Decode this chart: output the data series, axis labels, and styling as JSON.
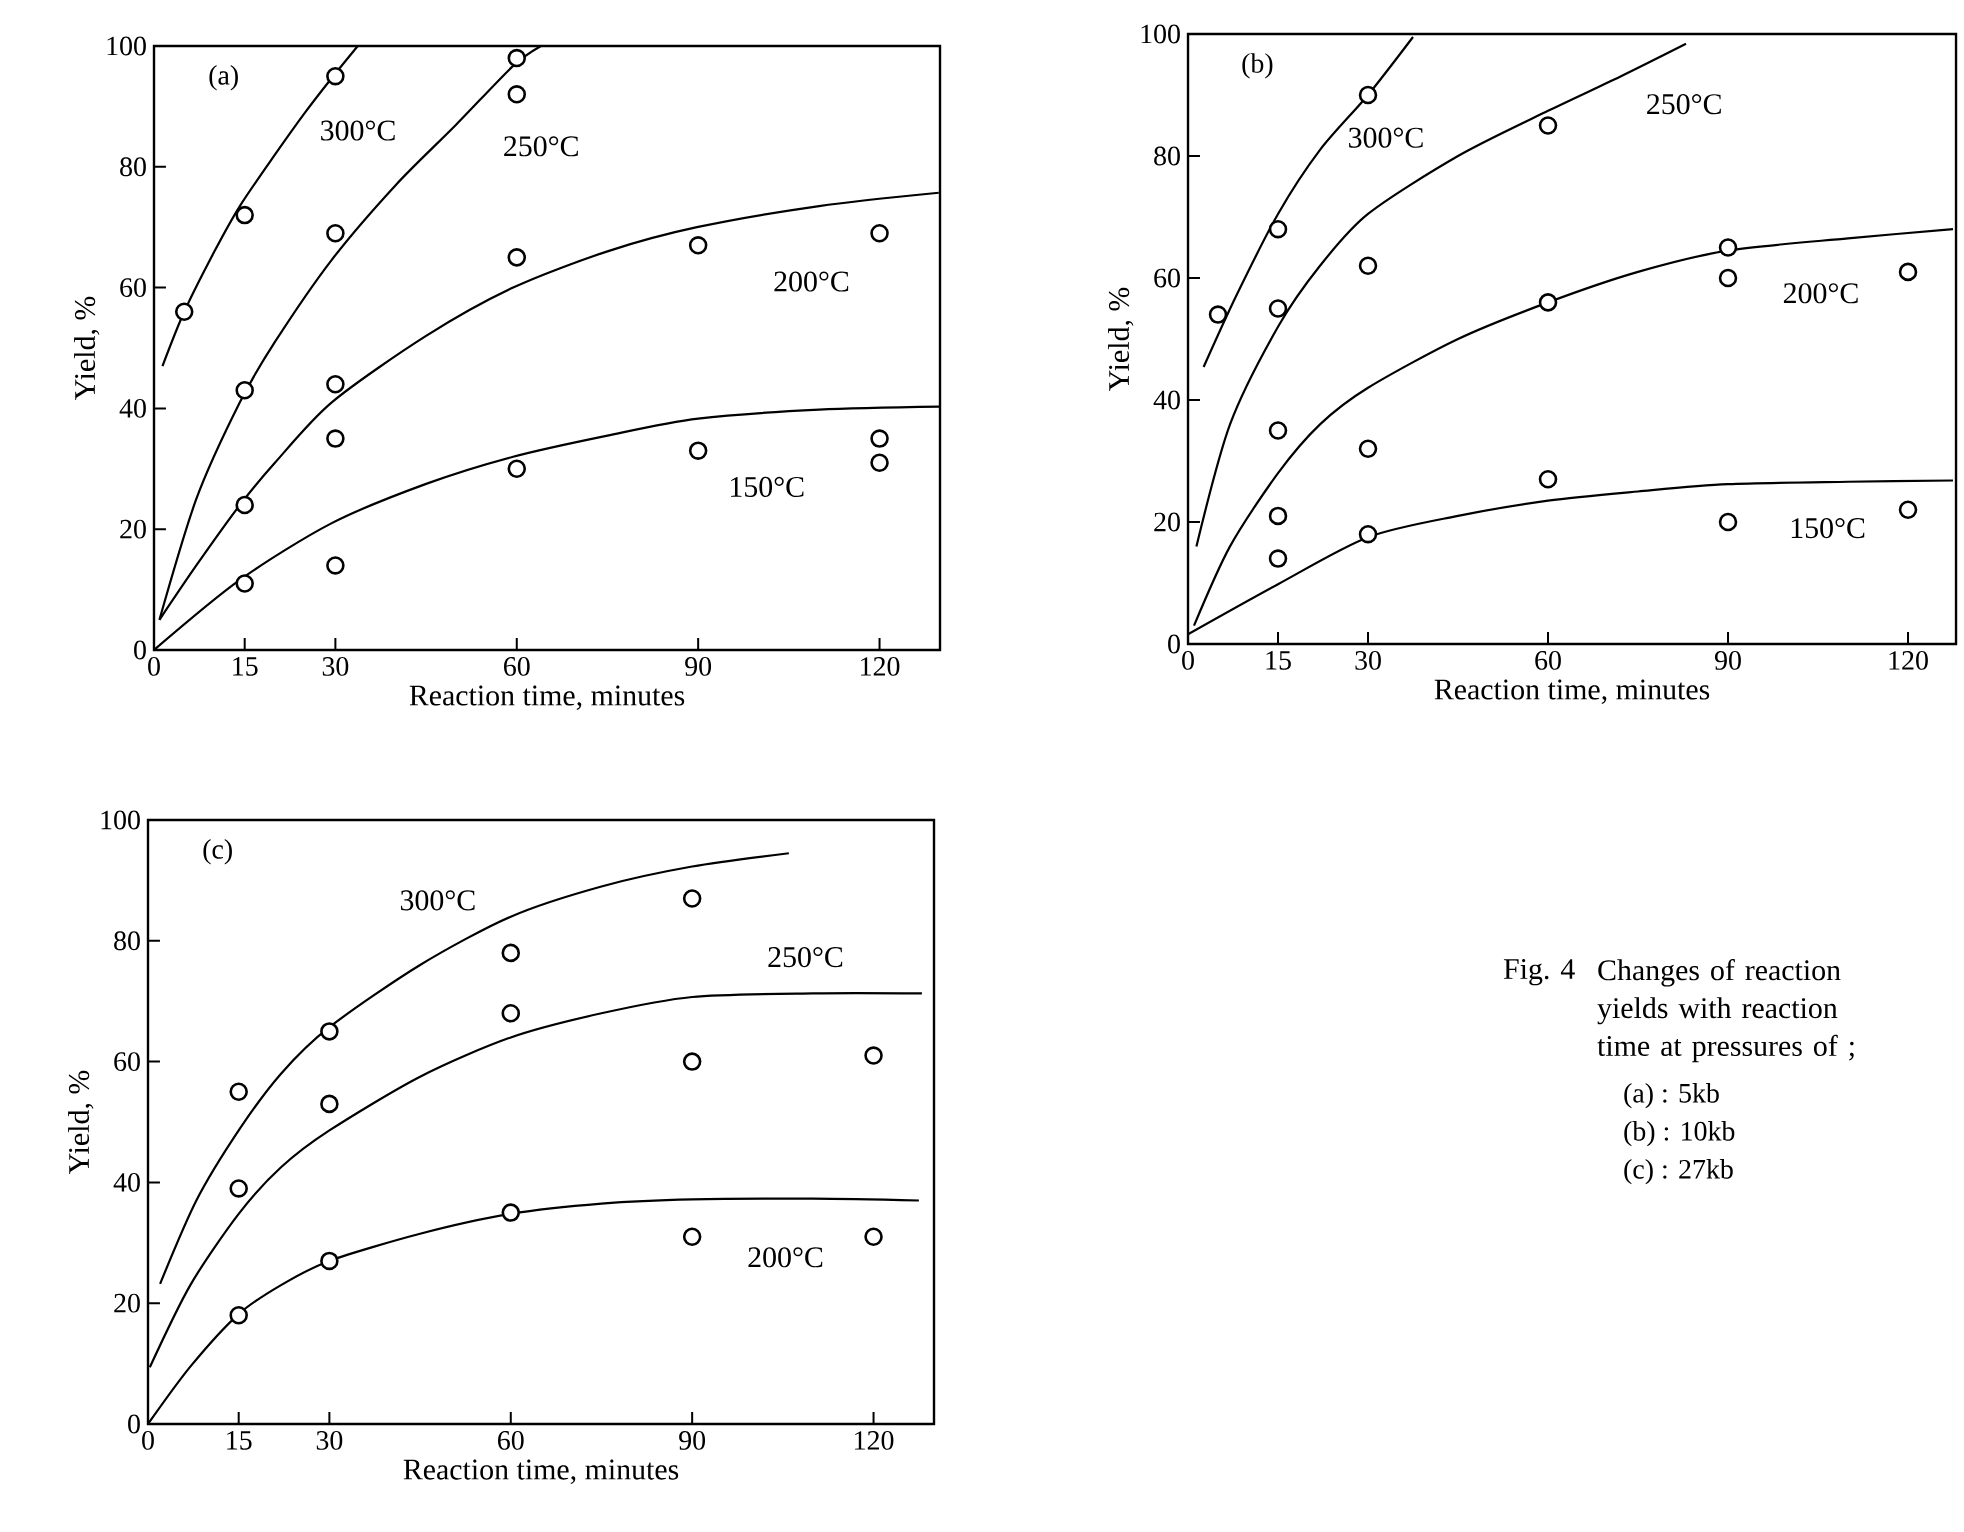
{
  "chart_data": [
    {
      "type": "scatter",
      "xlabel": "Reaction time, minutes",
      "ylabel": "Yield, %",
      "annotations": [
        "(a)"
      ],
      "xlim": [
        0,
        130
      ],
      "ylim": [
        0,
        100
      ],
      "xticks": [
        0,
        15,
        30,
        60,
        90,
        120
      ],
      "yticks": [
        0,
        20,
        40,
        60,
        80,
        100
      ],
      "grid": false,
      "series": [
        {
          "type": "line",
          "marker": "none",
          "name": "300°C",
          "color": "#000000",
          "x": [
            1.4,
            5,
            10,
            14.2,
            20,
            25,
            29.4,
            33.7
          ],
          "values": [
            47,
            56,
            66,
            73.5,
            82,
            89,
            94.7,
            100
          ]
        },
        {
          "marker": "circle",
          "color": "#000000",
          "x": [
            5,
            15,
            30
          ],
          "values": [
            56,
            72,
            95
          ]
        },
        {
          "type": "line",
          "marker": "none",
          "name": "250°C",
          "color": "#000000",
          "x": [
            0.9,
            7,
            14.2,
            20,
            29.4,
            40,
            50,
            59.4,
            64
          ],
          "values": [
            5,
            25,
            41,
            51,
            64.6,
            77,
            87,
            96.7,
            100
          ]
        },
        {
          "marker": "circle",
          "color": "#000000",
          "x": [
            15,
            30,
            60,
            60
          ],
          "values": [
            43,
            69,
            98,
            92
          ]
        },
        {
          "type": "line",
          "marker": "none",
          "name": "200°C",
          "color": "#000000",
          "x": [
            0.9,
            7,
            14.2,
            20,
            29.4,
            45,
            59.4,
            75,
            89.8,
            110,
            129.8
          ],
          "values": [
            5,
            14,
            24,
            31,
            41,
            52,
            60,
            66,
            70,
            73.5,
            75.7
          ]
        },
        {
          "marker": "circle",
          "color": "#000000",
          "x": [
            15,
            30,
            30,
            60,
            90,
            120
          ],
          "values": [
            24,
            44,
            35,
            65,
            67,
            69
          ]
        },
        {
          "type": "line",
          "marker": "none",
          "name": "150°C",
          "color": "#000000",
          "x": [
            0,
            14.2,
            29.4,
            45,
            59.4,
            75,
            90,
            110,
            130
          ],
          "values": [
            0,
            11.6,
            21,
            27.5,
            32,
            35.5,
            38.3,
            39.8,
            40.3
          ]
        },
        {
          "marker": "circle",
          "color": "#000000",
          "x": [
            15,
            30,
            60,
            90,
            120,
            120
          ],
          "values": [
            11,
            14,
            30,
            33,
            35,
            31
          ]
        }
      ]
    },
    {
      "type": "scatter",
      "xlabel": "Reaction time, minutes",
      "ylabel": "Yield, %",
      "annotations": [
        "(b)"
      ],
      "xlim": [
        0,
        128
      ],
      "ylim": [
        0,
        100
      ],
      "xticks": [
        0,
        15,
        30,
        60,
        90,
        120
      ],
      "yticks": [
        0,
        20,
        40,
        60,
        80,
        100
      ],
      "grid": false,
      "series": [
        {
          "type": "line",
          "marker": "none",
          "name": "300°C",
          "color": "#000000",
          "x": [
            2.6,
            8,
            15,
            22,
            30,
            37.5
          ],
          "values": [
            45.4,
            57,
            70.5,
            81,
            90,
            99.5
          ]
        },
        {
          "marker": "circle",
          "color": "#000000",
          "x": [
            5,
            15,
            30
          ],
          "values": [
            54,
            68,
            90
          ]
        },
        {
          "type": "line",
          "marker": "none",
          "name": "250°C",
          "color": "#000000",
          "x": [
            1.4,
            7,
            15,
            22,
            30,
            45,
            60,
            72,
            83
          ],
          "values": [
            16,
            36,
            52,
            62,
            70.5,
            80,
            87.4,
            93,
            98.4
          ]
        },
        {
          "marker": "circle",
          "color": "#000000",
          "x": [
            15,
            30,
            60
          ],
          "values": [
            55,
            62,
            85
          ]
        },
        {
          "type": "line",
          "marker": "none",
          "name": "200°C",
          "color": "#000000",
          "x": [
            1,
            7,
            15,
            22,
            30,
            45,
            60,
            75,
            90,
            110,
            127.5
          ],
          "values": [
            3,
            16,
            28,
            36,
            42,
            50,
            56,
            61,
            64.5,
            66.5,
            68
          ]
        },
        {
          "marker": "circle",
          "color": "#000000",
          "x": [
            15,
            15,
            30,
            60,
            90,
            90,
            120
          ],
          "values": [
            35,
            21,
            32,
            56,
            65,
            60,
            61
          ]
        },
        {
          "type": "line",
          "marker": "none",
          "name": "150°C",
          "color": "#000000",
          "x": [
            0,
            15,
            30,
            45,
            60,
            75,
            90,
            110,
            127.5
          ],
          "values": [
            1.6,
            9.8,
            17.5,
            21,
            23.5,
            25,
            26.2,
            26.6,
            26.8
          ]
        },
        {
          "marker": "circle",
          "color": "#000000",
          "x": [
            15,
            30,
            60,
            90,
            120
          ],
          "values": [
            14,
            18,
            27,
            20,
            22
          ]
        }
      ]
    },
    {
      "type": "scatter",
      "xlabel": "Reaction time, minutes",
      "ylabel": "Yield, %",
      "annotations": [
        "(c)"
      ],
      "xlim": [
        0,
        130
      ],
      "ylim": [
        0,
        100
      ],
      "xticks": [
        0,
        15,
        30,
        60,
        90,
        120
      ],
      "yticks": [
        0,
        20,
        40,
        60,
        80,
        100
      ],
      "grid": false,
      "series": [
        {
          "type": "line",
          "marker": "none",
          "name": "300°C",
          "color": "#000000",
          "x": [
            2,
            8,
            15,
            22,
            30,
            45,
            60,
            75,
            90,
            106
          ],
          "values": [
            23.2,
            37,
            48.6,
            58,
            65.7,
            76,
            84,
            89,
            92.3,
            94.5
          ]
        },
        {
          "marker": "circle",
          "color": "#000000",
          "x": [
            15,
            30,
            60,
            90
          ],
          "values": [
            55,
            65,
            78,
            87
          ]
        },
        {
          "type": "line",
          "marker": "none",
          "name": "250°C",
          "color": "#000000",
          "x": [
            0.3,
            7,
            15,
            22,
            30,
            45,
            60,
            75,
            90,
            110,
            128
          ],
          "values": [
            9.4,
            23,
            34.8,
            42.5,
            48.6,
            57.5,
            64,
            68,
            70.7,
            71.3,
            71.3
          ]
        },
        {
          "marker": "circle",
          "color": "#000000",
          "x": [
            15,
            30,
            60,
            90,
            120
          ],
          "values": [
            39,
            53,
            68,
            60,
            61
          ]
        },
        {
          "type": "line",
          "marker": "none",
          "name": "200°C",
          "color": "#000000",
          "x": [
            0,
            7,
            15,
            22,
            30,
            45,
            60,
            75,
            90,
            110,
            127.5
          ],
          "values": [
            0,
            9.5,
            18.2,
            23,
            27,
            31.5,
            34.8,
            36.5,
            37.2,
            37.3,
            37
          ]
        },
        {
          "marker": "circle",
          "color": "#000000",
          "x": [
            15,
            30,
            60,
            90,
            120
          ],
          "values": [
            18,
            27,
            35,
            31,
            31
          ]
        }
      ]
    },
    {
      "type": "other",
      "annotations": [
        "Fig. 4",
        "Changes of reaction yields with reaction time at pressures of ;",
        "(a) : 5kb",
        "(b) : 10kb",
        "(c) : 27kb"
      ]
    }
  ]
}
